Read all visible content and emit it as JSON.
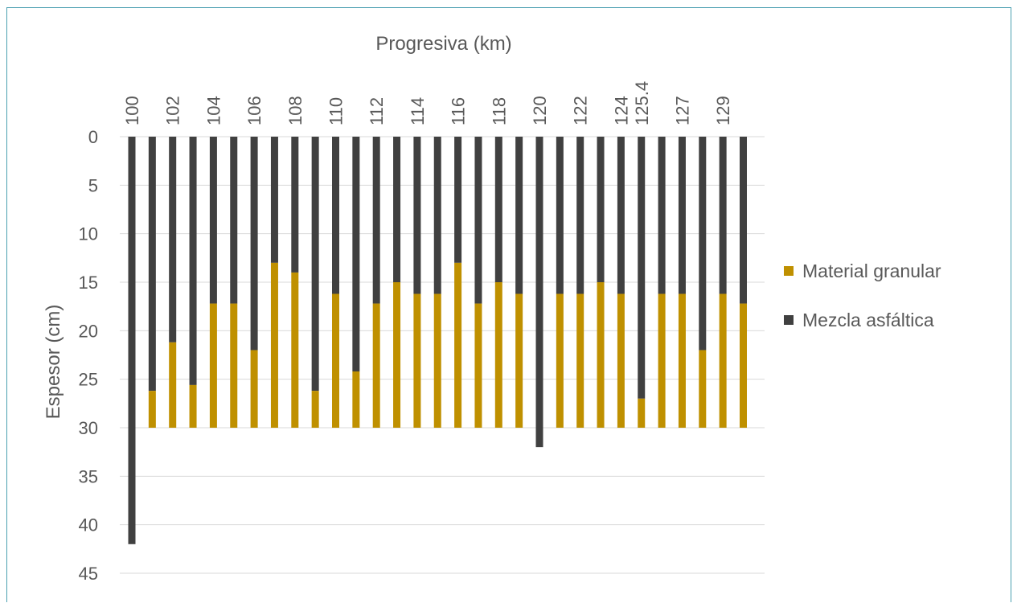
{
  "chart_data": {
    "type": "bar",
    "stacked": true,
    "orientation": "vertical-inverted-y",
    "title": "",
    "xlabel": "Progresiva (km)",
    "ylabel": "Espesor (cm)",
    "x_axis_position": "top",
    "ylim": [
      0,
      45
    ],
    "y_ticks": [
      0,
      5,
      10,
      15,
      20,
      25,
      30,
      35,
      40,
      45
    ],
    "grid": true,
    "legend_position": "right",
    "categories": [
      "100",
      "101",
      "102",
      "103",
      "104",
      "105",
      "106",
      "107",
      "108",
      "109",
      "110",
      "111",
      "112",
      "113",
      "114",
      "115",
      "116",
      "117",
      "118",
      "119",
      "120",
      "121",
      "122",
      "123",
      "124",
      "125.4",
      "126",
      "127",
      "128",
      "129",
      "130"
    ],
    "shown_tick_labels": [
      "100",
      "102",
      "104",
      "106",
      "108",
      "110",
      "112",
      "114",
      "116",
      "118",
      "120",
      "122",
      "124",
      "125.4",
      "127",
      "129"
    ],
    "series": [
      {
        "name": "Mezcla asfáltica",
        "color": "#404040",
        "values": [
          42,
          26.2,
          21.2,
          25.6,
          17.2,
          17.2,
          22,
          13,
          14,
          26.2,
          16.2,
          24.2,
          17.2,
          15,
          16.2,
          16.2,
          13,
          17.2,
          15,
          16.2,
          32,
          16.2,
          16.2,
          15,
          16.2,
          27,
          16.2,
          16.2,
          22,
          16.2,
          17.2
        ]
      },
      {
        "name": "Material granular",
        "color": "#bf9000",
        "values": [
          0,
          3.8,
          8.8,
          4.4,
          12.8,
          12.8,
          8,
          17,
          16,
          3.8,
          13.8,
          5.8,
          12.8,
          15,
          13.8,
          13.8,
          17,
          12.8,
          15,
          13.8,
          0,
          13.8,
          13.8,
          15,
          13.8,
          3,
          13.8,
          13.8,
          8,
          13.8,
          12.8
        ]
      }
    ],
    "legend": [
      "Material granular",
      "Mezcla asfáltica"
    ]
  }
}
